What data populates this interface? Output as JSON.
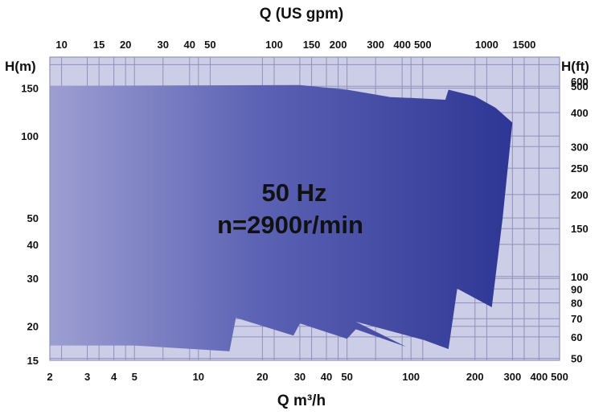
{
  "chart_data": {
    "type": "area",
    "x_scale": "log",
    "y_scale": "log",
    "grid": true,
    "xlim": [
      2,
      500
    ],
    "ylim": [
      15,
      195
    ],
    "xlabel": "Q m³/h",
    "ylabel": "H(m)",
    "x2label": "Q (US gpm)",
    "y2label": "H(ft)",
    "x_ticks": [
      2,
      3,
      4,
      5,
      10,
      20,
      30,
      40,
      50,
      100,
      200,
      300,
      400,
      500
    ],
    "y_ticks": [
      15,
      20,
      30,
      40,
      50,
      100,
      150
    ],
    "x2_ticks": [
      10,
      15,
      20,
      30,
      40,
      50,
      100,
      150,
      200,
      300,
      400,
      500,
      1000,
      1500
    ],
    "y2_ticks": [
      50,
      60,
      70,
      80,
      90,
      100,
      150,
      200,
      250,
      300,
      400,
      500,
      600
    ],
    "annotation_lines": [
      "50 Hz",
      "n=2900r/min"
    ],
    "colors": {
      "plot_background": "#cccde6",
      "grid": "#8f91bd",
      "area_light": "#9d9fd2",
      "area_dark": "#2d3694"
    },
    "envelope_top": [
      {
        "x": 2,
        "y": 153
      },
      {
        "x": 30,
        "y": 154
      },
      {
        "x": 50,
        "y": 148
      },
      {
        "x": 80,
        "y": 139
      },
      {
        "x": 100,
        "y": 138
      },
      {
        "x": 145,
        "y": 136
      },
      {
        "x": 150,
        "y": 148
      },
      {
        "x": 200,
        "y": 140
      },
      {
        "x": 250,
        "y": 127
      },
      {
        "x": 300,
        "y": 112
      },
      {
        "x": 270,
        "y": 50
      },
      {
        "x": 240,
        "y": 23.5
      },
      {
        "x": 165,
        "y": 27.5
      },
      {
        "x": 150,
        "y": 16.5
      }
    ],
    "envelope_bottom": [
      {
        "x": 150,
        "y": 16.5
      },
      {
        "x": 115,
        "y": 17.8
      },
      {
        "x": 55,
        "y": 20.8
      },
      {
        "x": 95,
        "y": 16.8
      },
      {
        "x": 55,
        "y": 19.5
      },
      {
        "x": 50,
        "y": 18.0
      },
      {
        "x": 30,
        "y": 20.5
      },
      {
        "x": 28,
        "y": 18.5
      },
      {
        "x": 15,
        "y": 21.5
      },
      {
        "x": 14,
        "y": 16.2
      },
      {
        "x": 5,
        "y": 17.0
      },
      {
        "x": 2,
        "y": 17.0
      }
    ]
  }
}
